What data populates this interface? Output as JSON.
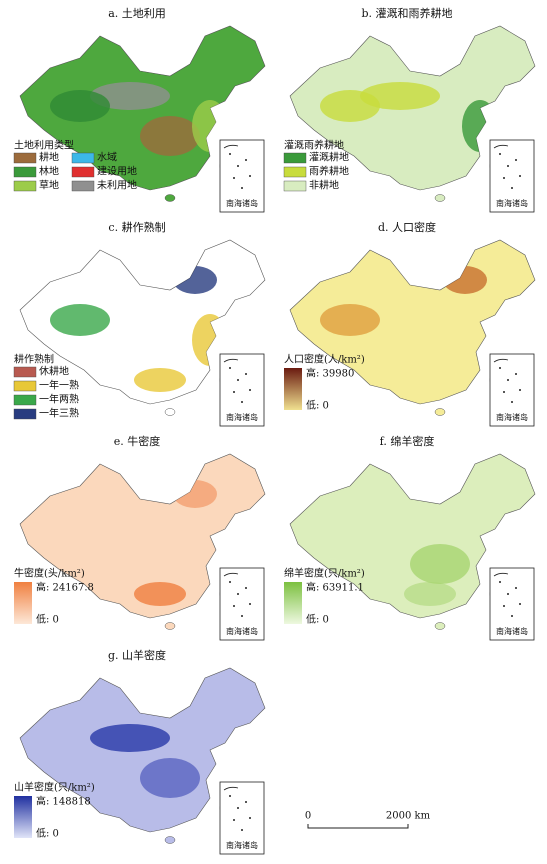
{
  "inset_label": "南海诸岛",
  "scale_bar": {
    "start": "0",
    "end": "2000 km"
  },
  "panels": [
    {
      "title": "a. 土地利用",
      "map_color": "#4ea83e",
      "patch_colors": [
        "#9c6b3c",
        "#909090",
        "#9ccc4a",
        "#2f8a34"
      ],
      "legend_title": "土地利用类型",
      "items": [
        {
          "label": "耕地",
          "color": "#9c6b3c"
        },
        {
          "label": "水域",
          "color": "#3cb8e8"
        },
        {
          "label": "林地",
          "color": "#3a9a3a"
        },
        {
          "label": "建设用地",
          "color": "#e03030"
        },
        {
          "label": "草地",
          "color": "#9ccc4a"
        },
        {
          "label": "未利用地",
          "color": "#909090"
        }
      ]
    },
    {
      "title": "b. 灌溉和雨养耕地",
      "map_color": "#d8ecc0",
      "patch_colors": [
        "#c8dc3c",
        "#3a9a3a",
        "#c8dc3c"
      ],
      "legend_title": "灌溉雨养耕地",
      "items": [
        {
          "label": "灌溉耕地",
          "color": "#3a9a3a"
        },
        {
          "label": "雨养耕地",
          "color": "#c8dc3c"
        },
        {
          "label": "非耕地",
          "color": "#d8ecc0"
        }
      ]
    },
    {
      "title": "c. 耕作熟制",
      "map_color": "#ffffff",
      "patch_colors": [
        "#e8c838",
        "#3aa84a",
        "#283c80",
        "#e8c838"
      ],
      "legend_title": "耕作熟制",
      "items": [
        {
          "label": "休耕地",
          "color": "#b85a50"
        },
        {
          "label": "一年一熟",
          "color": "#e8c838"
        },
        {
          "label": "一年两熟",
          "color": "#3aa84a"
        },
        {
          "label": "一年三熟",
          "color": "#283c80"
        }
      ]
    },
    {
      "title": "d. 人口密度",
      "map_color": "#f5ec98",
      "patch_colors": [
        "#e0a040",
        "#c87030"
      ],
      "legend_title": "人口密度(人/km²)",
      "high": "高: 39980",
      "low": "低: 0",
      "ramp": [
        "#6a1a10",
        "#f0e090"
      ]
    },
    {
      "title": "e. 牛密度",
      "map_color": "#fbd8bc",
      "patch_colors": [
        "#f4a070",
        "#f08040"
      ],
      "legend_title": "牛密度(头/km²)",
      "high": "高: 24167.8",
      "low": "低: 0",
      "ramp": [
        "#f08040",
        "#fde8d8"
      ]
    },
    {
      "title": "f. 绵羊密度",
      "map_color": "#dceebc",
      "patch_colors": [
        "#b8dc88",
        "#a8d470"
      ],
      "legend_title": "绵羊密度(只/km²)",
      "high": "高: 63911.1",
      "low": "低: 0",
      "ramp": [
        "#7cc040",
        "#eef8e0"
      ]
    },
    {
      "title": "g. 山羊密度",
      "map_color": "#b8bce8",
      "patch_colors": [
        "#5a64c0",
        "#2838a8"
      ],
      "legend_title": "山羊密度(只/km²)",
      "high": "高: 148818",
      "low": "低: 0",
      "ramp": [
        "#2030a0",
        "#e0e4f8"
      ]
    }
  ]
}
